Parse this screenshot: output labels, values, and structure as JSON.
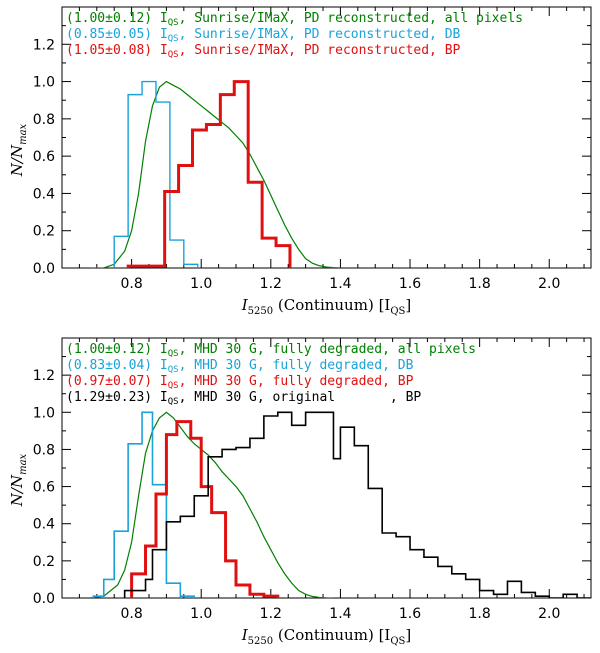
{
  "chart_data": [
    {
      "type": "histogram",
      "xlabel": "I5250 (Continuum) [IQS]",
      "xlabel_main": "I",
      "xlabel_sub": "5250",
      "xlabel_rest": " (Continuum) [I",
      "xlabel_rest_sub": "QS",
      "xlabel_end": "]",
      "ylabel": "N/Nmax",
      "ylabel_n": "N/N",
      "ylabel_sub": "max",
      "xlim": [
        0.6,
        2.12
      ],
      "ylim": [
        0,
        1.4
      ],
      "xticks": [
        0.8,
        1.0,
        1.2,
        1.4,
        1.6,
        1.8,
        2.0
      ],
      "xtick_labels": [
        "0.8",
        "1.0",
        "1.2",
        "1.4",
        "1.6",
        "1.8",
        "2.0"
      ],
      "yticks": [
        0.0,
        0.2,
        0.4,
        0.6,
        0.8,
        1.0,
        1.2
      ],
      "ytick_labels": [
        "0.0",
        "0.2",
        "0.4",
        "0.6",
        "0.8",
        "1.0",
        "1.2"
      ],
      "legend": [
        {
          "pre": "(1.00±0.12) I",
          "sub": "QS",
          "post": ", Sunrise/IMaX, PD reconstructed, all pixels",
          "color": "#008000"
        },
        {
          "pre": "(0.85±0.05) I",
          "sub": "QS",
          "post": ", Sunrise/IMaX, PD reconstructed, DB",
          "color": "#1aa3d9"
        },
        {
          "pre": "(1.05±0.08) I",
          "sub": "QS",
          "post": ", Sunrise/IMaX, PD reconstructed, BP",
          "color": "#e01010"
        }
      ],
      "series": [
        {
          "name": "all pixels",
          "style": "line",
          "color": "#008000",
          "width": 1.2,
          "x": [
            0.68,
            0.72,
            0.75,
            0.78,
            0.8,
            0.82,
            0.84,
            0.86,
            0.88,
            0.9,
            0.92,
            0.94,
            0.96,
            0.98,
            1.0,
            1.02,
            1.04,
            1.06,
            1.08,
            1.1,
            1.12,
            1.14,
            1.16,
            1.18,
            1.2,
            1.22,
            1.24,
            1.26,
            1.28,
            1.3,
            1.32,
            1.34,
            1.36,
            1.38,
            1.4
          ],
          "y": [
            0.0,
            0.0,
            0.02,
            0.09,
            0.2,
            0.4,
            0.68,
            0.87,
            0.97,
            1.0,
            0.98,
            0.96,
            0.93,
            0.9,
            0.87,
            0.84,
            0.81,
            0.78,
            0.75,
            0.71,
            0.67,
            0.61,
            0.54,
            0.47,
            0.39,
            0.31,
            0.23,
            0.16,
            0.1,
            0.05,
            0.025,
            0.012,
            0.005,
            0.002,
            0.0
          ]
        },
        {
          "name": "DB",
          "style": "step",
          "color": "#1aa3d9",
          "width": 1.4,
          "edges": [
            0.75,
            0.79,
            0.83,
            0.87,
            0.91,
            0.95,
            0.99
          ],
          "values": [
            0.17,
            0.93,
            1.0,
            0.89,
            0.15,
            0.02
          ]
        },
        {
          "name": "BP",
          "style": "step",
          "color": "#e01010",
          "width": 3,
          "edges": [
            0.79,
            0.895,
            0.935,
            0.975,
            1.015,
            1.055,
            1.095,
            1.135,
            1.175,
            1.215,
            1.255
          ],
          "values": [
            0.01,
            0.41,
            0.55,
            0.74,
            0.77,
            0.93,
            1.0,
            0.46,
            0.16,
            0.12
          ]
        }
      ]
    },
    {
      "type": "histogram",
      "xlabel": "I5250 (Continuum) [IQS]",
      "xlabel_main": "I",
      "xlabel_sub": "5250",
      "xlabel_rest": " (Continuum) [I",
      "xlabel_rest_sub": "QS",
      "xlabel_end": "]",
      "ylabel": "N/Nmax",
      "ylabel_n": "N/N",
      "ylabel_sub": "max",
      "xlim": [
        0.6,
        2.12
      ],
      "ylim": [
        0,
        1.4
      ],
      "xticks": [
        0.8,
        1.0,
        1.2,
        1.4,
        1.6,
        1.8,
        2.0
      ],
      "xtick_labels": [
        "0.8",
        "1.0",
        "1.2",
        "1.4",
        "1.6",
        "1.8",
        "2.0"
      ],
      "yticks": [
        0.0,
        0.2,
        0.4,
        0.6,
        0.8,
        1.0,
        1.2
      ],
      "ytick_labels": [
        "0.0",
        "0.2",
        "0.4",
        "0.6",
        "0.8",
        "1.0",
        "1.2"
      ],
      "legend": [
        {
          "pre": "(1.00±0.12) I",
          "sub": "QS",
          "post": ", MHD 30 G, fully degraded, all pixels",
          "color": "#008000"
        },
        {
          "pre": "(0.83±0.04) I",
          "sub": "QS",
          "post": ", MHD 30 G, fully degraded, DB",
          "color": "#1aa3d9"
        },
        {
          "pre": "(0.97±0.07) I",
          "sub": "QS",
          "post": ", MHD 30 G, fully degraded, BP",
          "color": "#e01010"
        },
        {
          "pre": "(1.29±0.23) I",
          "sub": "QS",
          "post": ", MHD 30 G, original       , BP",
          "color": "#000000"
        }
      ],
      "series": [
        {
          "name": "all pixels",
          "style": "line",
          "color": "#008000",
          "width": 1.2,
          "x": [
            0.68,
            0.72,
            0.76,
            0.78,
            0.8,
            0.82,
            0.84,
            0.86,
            0.88,
            0.9,
            0.92,
            0.94,
            0.96,
            0.98,
            1.0,
            1.02,
            1.04,
            1.06,
            1.08,
            1.1,
            1.12,
            1.14,
            1.16,
            1.18,
            1.2,
            1.22,
            1.24,
            1.26,
            1.28,
            1.3,
            1.32,
            1.34,
            1.36,
            1.38
          ],
          "y": [
            0.0,
            0.01,
            0.07,
            0.15,
            0.3,
            0.55,
            0.78,
            0.9,
            0.97,
            1.0,
            0.97,
            0.92,
            0.87,
            0.83,
            0.8,
            0.77,
            0.73,
            0.68,
            0.64,
            0.6,
            0.55,
            0.48,
            0.41,
            0.33,
            0.26,
            0.19,
            0.13,
            0.08,
            0.04,
            0.02,
            0.008,
            0.003,
            0.001,
            0.0
          ]
        },
        {
          "name": "DB",
          "style": "step",
          "color": "#1aa3d9",
          "width": 1.6,
          "edges": [
            0.69,
            0.72,
            0.75,
            0.79,
            0.83,
            0.86,
            0.9,
            0.94,
            0.98
          ],
          "values": [
            0.01,
            0.1,
            0.36,
            0.83,
            1.0,
            0.61,
            0.08,
            0.01
          ]
        },
        {
          "name": "BP",
          "style": "step",
          "color": "#e01010",
          "width": 3,
          "edges": [
            0.8,
            0.84,
            0.87,
            0.9,
            0.93,
            0.97,
            1.0,
            1.03,
            1.07,
            1.1,
            1.14,
            1.18,
            1.22
          ],
          "values": [
            0.13,
            0.28,
            0.56,
            0.88,
            0.95,
            0.86,
            0.6,
            0.46,
            0.2,
            0.07,
            0.02,
            0.01
          ]
        },
        {
          "name": "original BP",
          "style": "step",
          "color": "#000000",
          "width": 1.6,
          "edges": [
            0.78,
            0.84,
            0.86,
            0.9,
            0.94,
            0.98,
            1.02,
            1.06,
            1.1,
            1.14,
            1.18,
            1.22,
            1.26,
            1.3,
            1.34,
            1.38,
            1.4,
            1.44,
            1.48,
            1.52,
            1.56,
            1.6,
            1.64,
            1.68,
            1.72,
            1.76,
            1.8,
            1.84,
            1.88,
            1.92,
            1.96,
            2.0,
            2.04,
            2.08,
            2.12
          ],
          "values": [
            0.04,
            0.1,
            0.26,
            0.41,
            0.44,
            0.55,
            0.76,
            0.8,
            0.81,
            0.86,
            0.98,
            1.0,
            0.93,
            1.0,
            1.0,
            0.75,
            0.92,
            0.82,
            0.59,
            0.35,
            0.33,
            0.26,
            0.22,
            0.17,
            0.13,
            0.1,
            0.04,
            0.02,
            0.09,
            0.03,
            0.01,
            0.0,
            0.02,
            0.0
          ]
        }
      ]
    }
  ]
}
